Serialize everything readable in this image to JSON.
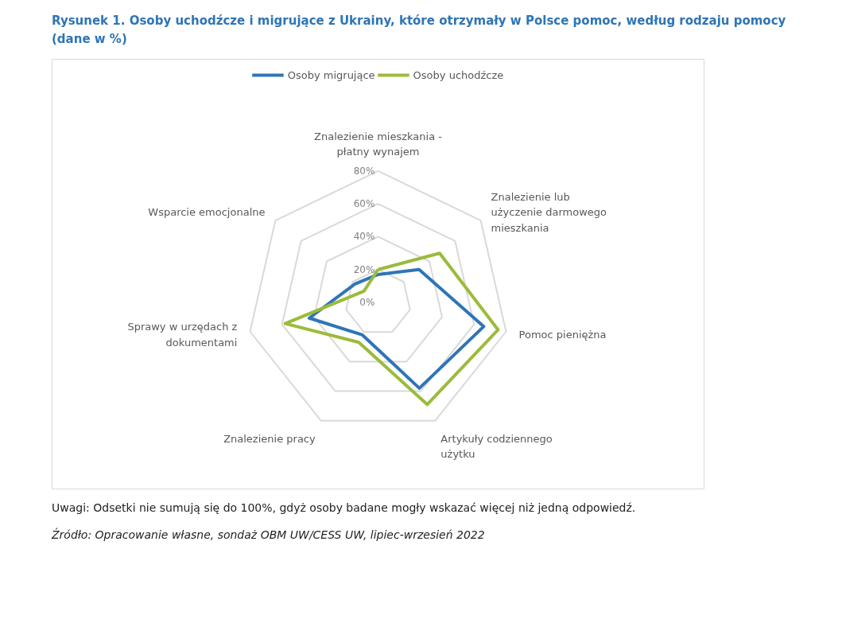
{
  "chart_data": {
    "type": "radar",
    "title": "Rysunek 1. Osoby uchodźcze i migrujące z Ukrainy, które otrzymały w Polsce pomoc, według rodzaju pomocy (dane w %)",
    "categories": [
      "Znalezienie mieszkania - płatny wynajem",
      "Znalezienie lub użyczenie darmowego mieszkania",
      "Pomoc pieniężna",
      "Artykuły codziennego użytku",
      "Znalezienie pracy",
      "Sprawy w urzędach z dokumentami",
      "Wsparcie emocjonalne"
    ],
    "series": [
      {
        "name": "Osoby migrujące",
        "color": "#2e75b6",
        "values": [
          17,
          32,
          66,
          58,
          22,
          43,
          18
        ]
      },
      {
        "name": "Osoby uchodźcze",
        "color": "#9bbb3b",
        "values": [
          20,
          48,
          75,
          69,
          27,
          58,
          11
        ]
      }
    ],
    "ylim": [
      0,
      80
    ],
    "yticks": [
      {
        "value": 0,
        "label": "0%"
      },
      {
        "value": 20,
        "label": "20%"
      },
      {
        "value": 40,
        "label": "40%"
      },
      {
        "value": 60,
        "label": "60%"
      },
      {
        "value": 80,
        "label": "80%"
      }
    ],
    "grid": true,
    "legend": "top",
    "annotations": [
      "Uwagi: Odsetki nie sumują się do 100%, gdyż osoby badane mogły wskazać więcej niż jedną odpowiedź.",
      "Źródło: Opracowanie własne, sondaż OBM UW/CESS UW, lipiec-wrzesień 2022"
    ]
  }
}
